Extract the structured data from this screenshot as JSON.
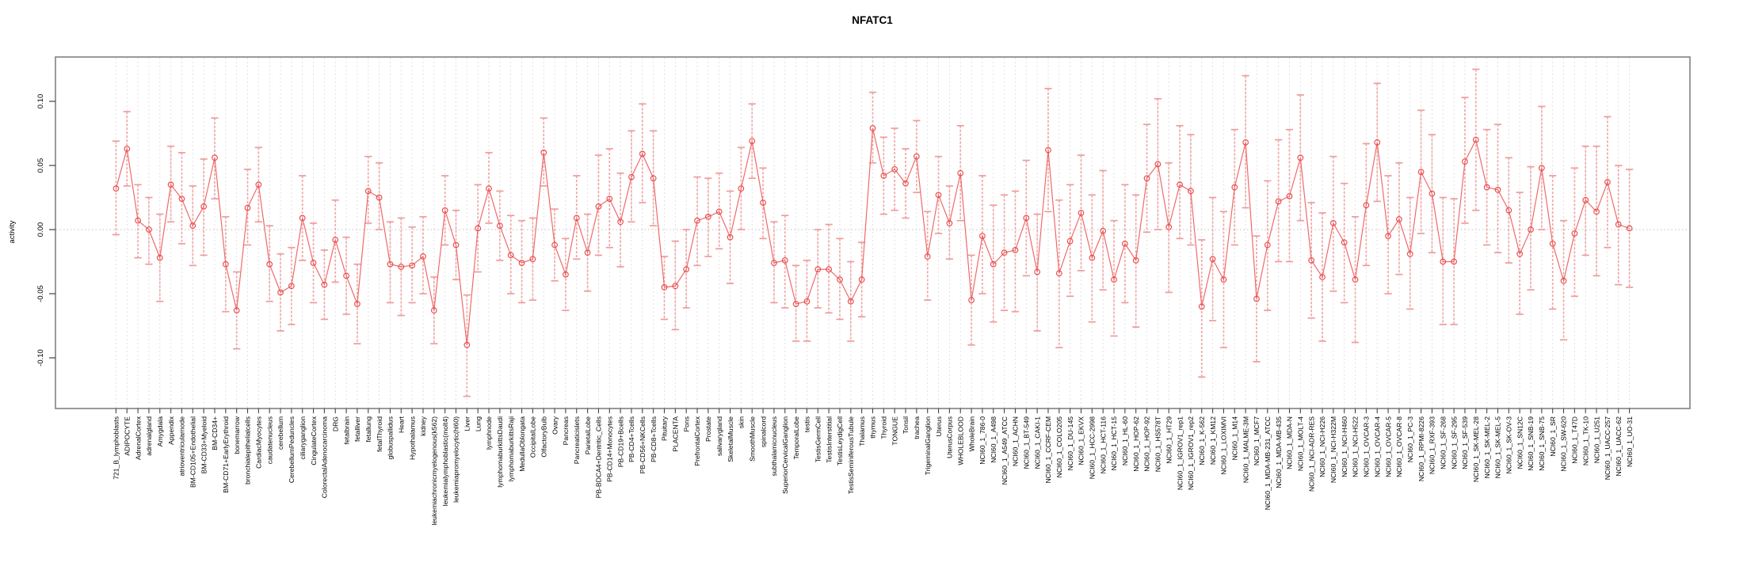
{
  "title": "NFATC1",
  "colors": {
    "point": "#e84c4c",
    "series_line": "#ef6a6a",
    "error_bar": "#f09b9b",
    "grid": "#dedede",
    "zero_line": "#c0c0c0",
    "axis_box": "#808080",
    "tick": "#444444",
    "label_text": "#000000",
    "background": "#ffffff"
  },
  "chart_data": {
    "type": "line",
    "subtype": "points-with-error-bars",
    "title": "NFATC1",
    "xlabel": "",
    "ylabel": "activity",
    "ylim": [
      -0.139,
      0.135
    ],
    "yticks": [
      0.1,
      0.05,
      0.0,
      -0.05,
      -0.1
    ],
    "grid": "vertical dashed gridline per category; dotted horizontal line at y=0",
    "legend": "none",
    "categories": [
      "721_B_lymphoblasts",
      "ADIPOCYTE",
      "AdrenalCortex",
      "adrenalgland",
      "Amygdala",
      "Appendix",
      "atrioventricularnode",
      "BM-CD105+Endothelial",
      "BM-CD33+Myeloid",
      "BM-CD34+",
      "BM-CD71+EarlyErythroid",
      "bonemarrow",
      "bronchialepithelialcells",
      "CardiacMyocytes",
      "caudatenucleus",
      "cerebellum",
      "CerebellumPeduncles",
      "ciliaryganglion",
      "CingulateCortex",
      "ColorectalAdenocarcinoma",
      "DRG",
      "fetalbrain",
      "fetalliver",
      "fetallung",
      "fetalThyroid",
      "globuspallidus",
      "Heart",
      "Hypothalamus",
      "kidney",
      "leukemiachronicmyelogenous(k562)",
      "leukemialymphoblastic(molt4)",
      "leukemiapromyelocytic(hl60)",
      "Liver",
      "Lung",
      "lymphnode",
      "lymphomaburkittsDaudi",
      "lymphomaburkittsRaji",
      "MedullaOblongata",
      "OccipitalLobe",
      "OlfactoryBulb",
      "Ovary",
      "Pancreas",
      "Pancreaticislets",
      "ParietalLobe",
      "PB-BDCA4+Dentritic_Cells",
      "PB-CD14+Monocytes",
      "PB-CD19+Bcells",
      "PB-CD4+Tcells",
      "PB-CD56+NKCells",
      "PB-CD8+Tcells",
      "Pituitary",
      "PLACENTA",
      "Pons",
      "PrefrontalCortex",
      "Prostate",
      "salivarygland",
      "SkeletalMuscle",
      "skin",
      "SmoothMuscle",
      "spinalcord",
      "subthalamicnucleus",
      "SuperiorCervicalGanglion",
      "TemporalLobe",
      "testis",
      "TestisGermCell",
      "TestisInterstitial",
      "TestisLeydigCell",
      "TestisSeminiferousTubule",
      "Thalamus",
      "thymus",
      "Thyroid",
      "TONGUE",
      "Tonsil",
      "trachea",
      "TrigeminalGanglion",
      "Uterus",
      "UterusCorpus",
      "WHOLEBLOOD",
      "WholeBrain",
      "NCI60_1_786-0",
      "NCI60_1_A498",
      "NCI60_1_A549_ATCC",
      "NCI60_1_ACHN",
      "NCI60_1_BT-549",
      "NCI60_1_CAKI-1",
      "NCI60_1_CCRF-CEM",
      "NCI60_1_COLO205",
      "NCI60_1_DU-145",
      "NCI60_1_EKVX",
      "NCI60_1_HCC-2998",
      "NCI60_1_HCT-116",
      "NCI60_1_HCT-15",
      "NCI60_1_HL-60",
      "NCI60_1_HOP-62",
      "NCI60_1_HOP-92",
      "NCI60_1_HS578T",
      "NCI60_1_HT29",
      "NCI60_1_IGROV1_rep1",
      "NCI60_1_IGROV1_rep2",
      "NCI60_1_K-562",
      "NCI60_1_KM12",
      "NCI60_1_LOXIMVI",
      "NCI60_1_M14",
      "NCI60_1_MALME-3M",
      "NCI60_1_MCF7",
      "NCI60_1_MDA-MB-231_ATCC",
      "NCI60_1_MDA-MB-435",
      "NCI60_1_MDA-N",
      "NCI60_1_MOLT-4",
      "NCI60_1_NCI-ADR-RES",
      "NCI60_1_NCI-H226",
      "NCI60_1_NCI-H322M",
      "NCI60_1_NCI-H460",
      "NCI60_1_NCI-H522",
      "NCI60_1_OVCAR-3",
      "NCI60_1_OVCAR-4",
      "NCI60_1_OVCAR-5",
      "NCI60_1_OVCAR-8",
      "NCI60_1_PC-3",
      "NCI60_1_RPMI-8226",
      "NCI60_1_RXF-393",
      "NCI60_1_SF-268",
      "NCI60_1_SF-295",
      "NCI60_1_SF-539",
      "NCI60_1_SK-MEL-28",
      "NCI60_1_SK-MEL-2",
      "NCI60_1_SK-MEL-5",
      "NCI60_1_SK-OV-3",
      "NCI60_1_SN12C",
      "NCI60_1_SNB-19",
      "NCI60_1_SNB-75",
      "NCI60_1_SR",
      "NCI60_1_SW-620",
      "NCI60_1_T47D",
      "NCI60_1_TK-10",
      "NCI60_1_U251",
      "NCI60_1_UACC-257",
      "NCI60_1_UACC-62",
      "NCI60_1_UO-31"
    ],
    "series": [
      {
        "name": "activity",
        "values": [
          0.032,
          0.063,
          0.007,
          0.0,
          -0.022,
          0.035,
          0.024,
          0.003,
          0.018,
          0.056,
          -0.027,
          -0.063,
          0.017,
          0.035,
          -0.027,
          -0.049,
          -0.044,
          0.009,
          -0.026,
          -0.043,
          -0.008,
          -0.036,
          -0.058,
          0.03,
          0.025,
          -0.027,
          -0.029,
          -0.028,
          -0.021,
          -0.063,
          0.015,
          -0.012,
          -0.09,
          0.001,
          0.032,
          0.003,
          -0.02,
          -0.026,
          -0.023,
          0.06,
          -0.012,
          -0.035,
          0.009,
          -0.018,
          0.018,
          0.024,
          0.006,
          0.041,
          0.059,
          0.04,
          -0.045,
          -0.044,
          -0.031,
          0.007,
          0.01,
          0.014,
          -0.006,
          0.032,
          0.069,
          0.021,
          -0.026,
          -0.024,
          -0.058,
          -0.056,
          -0.031,
          -0.031,
          -0.039,
          -0.056,
          -0.039,
          0.079,
          0.042,
          0.047,
          0.036,
          0.057,
          -0.021,
          0.027,
          0.005,
          0.044,
          -0.055,
          -0.005,
          -0.027,
          -0.018,
          -0.016,
          0.009,
          -0.033,
          0.062,
          -0.034,
          -0.009,
          0.013,
          -0.022,
          -0.001,
          -0.039,
          -0.011,
          -0.024,
          0.04,
          0.051,
          0.002,
          0.035,
          0.03,
          -0.06,
          -0.023,
          -0.039,
          0.033,
          0.068,
          -0.054,
          -0.012,
          0.022,
          0.026,
          0.056,
          -0.024,
          -0.037,
          0.005,
          -0.01,
          -0.039,
          0.019,
          0.068,
          -0.005,
          0.008,
          -0.019,
          0.045,
          0.028,
          -0.025,
          -0.025,
          0.053,
          0.07,
          0.033,
          0.031,
          0.015,
          -0.019,
          0.0,
          0.048,
          -0.011,
          -0.04,
          -0.003,
          0.023,
          0.014,
          0.037,
          0.004,
          0.001
        ],
        "err_lo": [
          -0.004,
          0.034,
          -0.022,
          -0.027,
          -0.056,
          0.006,
          -0.011,
          -0.028,
          -0.02,
          0.024,
          -0.064,
          -0.093,
          -0.012,
          0.006,
          -0.056,
          -0.079,
          -0.074,
          -0.024,
          -0.057,
          -0.07,
          -0.041,
          -0.066,
          -0.089,
          0.005,
          0.0,
          -0.057,
          -0.067,
          -0.057,
          -0.05,
          -0.089,
          -0.012,
          -0.039,
          -0.13,
          -0.033,
          0.005,
          -0.024,
          -0.05,
          -0.057,
          -0.055,
          0.034,
          -0.04,
          -0.063,
          -0.023,
          -0.048,
          -0.02,
          -0.014,
          -0.029,
          0.006,
          0.021,
          0.003,
          -0.07,
          -0.078,
          -0.061,
          -0.028,
          -0.021,
          -0.015,
          -0.042,
          0.0,
          0.04,
          -0.007,
          -0.057,
          -0.061,
          -0.087,
          -0.087,
          -0.061,
          -0.065,
          -0.07,
          -0.087,
          -0.068,
          0.052,
          0.012,
          0.015,
          0.009,
          0.029,
          -0.055,
          -0.003,
          -0.023,
          0.007,
          -0.09,
          -0.05,
          -0.072,
          -0.063,
          -0.064,
          -0.036,
          -0.079,
          0.014,
          -0.092,
          -0.052,
          -0.032,
          -0.072,
          -0.047,
          -0.083,
          -0.057,
          -0.076,
          -0.002,
          0.0,
          -0.049,
          -0.007,
          -0.012,
          -0.115,
          -0.071,
          -0.092,
          -0.012,
          0.017,
          -0.103,
          -0.063,
          -0.025,
          -0.025,
          0.007,
          -0.069,
          -0.087,
          -0.048,
          -0.057,
          -0.088,
          -0.028,
          0.022,
          -0.05,
          -0.035,
          -0.062,
          -0.003,
          -0.018,
          -0.074,
          -0.074,
          0.005,
          0.015,
          -0.012,
          -0.018,
          -0.026,
          -0.066,
          -0.047,
          0.0,
          -0.062,
          -0.086,
          -0.052,
          -0.02,
          -0.036,
          -0.014,
          -0.043,
          -0.045
        ],
        "err_hi": [
          0.069,
          0.092,
          0.035,
          0.025,
          0.012,
          0.065,
          0.06,
          0.034,
          0.055,
          0.087,
          0.01,
          -0.033,
          0.047,
          0.064,
          0.003,
          -0.019,
          -0.014,
          0.042,
          0.005,
          -0.016,
          0.023,
          -0.006,
          -0.027,
          0.057,
          0.052,
          0.006,
          0.009,
          0.002,
          0.01,
          -0.037,
          0.042,
          0.015,
          -0.051,
          0.035,
          0.06,
          0.03,
          0.011,
          0.007,
          0.009,
          0.087,
          0.016,
          -0.007,
          0.042,
          0.012,
          0.058,
          0.063,
          0.044,
          0.077,
          0.098,
          0.077,
          -0.021,
          -0.009,
          0.0,
          0.041,
          0.04,
          0.044,
          0.03,
          0.064,
          0.098,
          0.048,
          0.006,
          0.011,
          -0.028,
          -0.024,
          0.0,
          0.004,
          -0.007,
          -0.025,
          -0.01,
          0.107,
          0.072,
          0.079,
          0.063,
          0.085,
          0.014,
          0.057,
          0.034,
          0.081,
          -0.02,
          0.042,
          0.019,
          0.027,
          0.03,
          0.054,
          0.012,
          0.11,
          0.023,
          0.035,
          0.058,
          0.027,
          0.046,
          0.007,
          0.035,
          0.027,
          0.082,
          0.102,
          0.052,
          0.081,
          0.074,
          -0.008,
          0.025,
          0.014,
          0.078,
          0.12,
          -0.005,
          0.038,
          0.07,
          0.078,
          0.105,
          0.021,
          0.013,
          0.057,
          0.036,
          0.01,
          0.067,
          0.114,
          0.042,
          0.052,
          0.025,
          0.093,
          0.074,
          0.025,
          0.024,
          0.103,
          0.125,
          0.078,
          0.082,
          0.056,
          0.029,
          0.049,
          0.096,
          0.042,
          0.007,
          0.048,
          0.065,
          0.065,
          0.088,
          0.05,
          0.047
        ]
      }
    ]
  }
}
